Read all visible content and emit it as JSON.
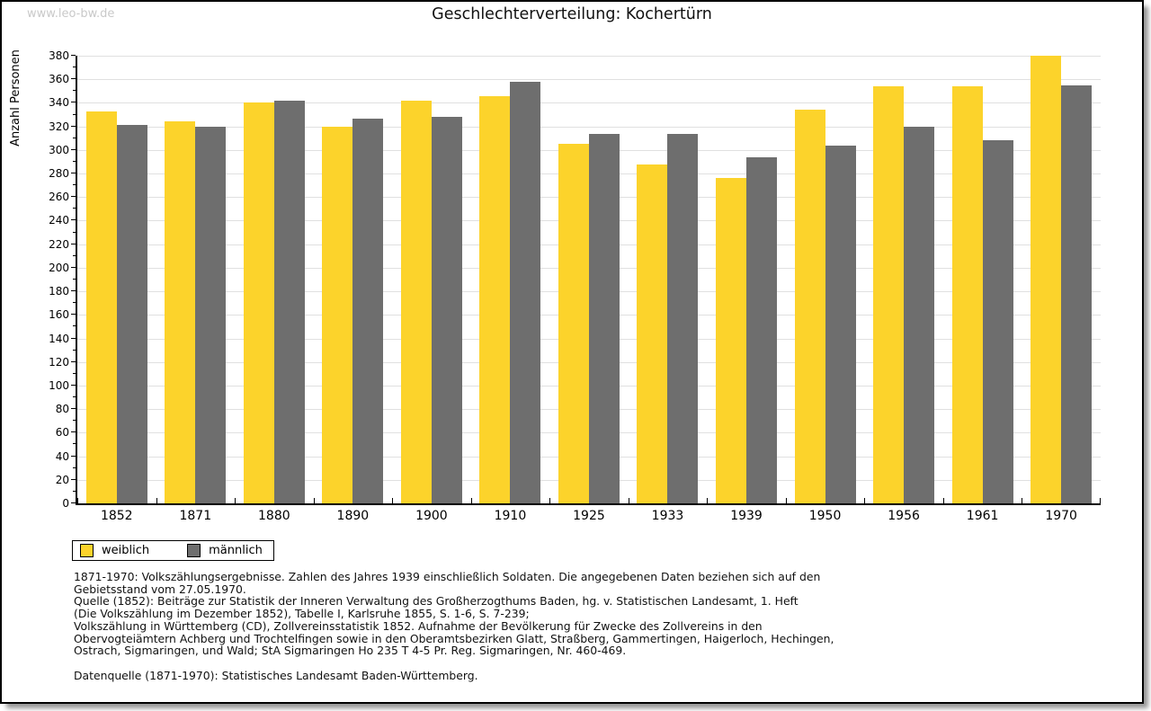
{
  "page": {
    "watermark": "www.leo-bw.de",
    "title": "Geschlechterverteilung: Kochertürn"
  },
  "chart_data": {
    "type": "bar",
    "title": "Geschlechterverteilung: Kochertürn",
    "xlabel": "",
    "ylabel": "Anzahl Personen",
    "ylim": [
      0,
      380
    ],
    "ytick_step": 20,
    "grid": true,
    "legend_position": "bottom-left",
    "categories": [
      "1852",
      "1871",
      "1880",
      "1890",
      "1900",
      "1910",
      "1925",
      "1933",
      "1939",
      "1950",
      "1956",
      "1961",
      "1970"
    ],
    "series": [
      {
        "name": "weiblich",
        "color": "#fcd32b",
        "values": [
          333,
          324,
          340,
          320,
          342,
          346,
          305,
          288,
          276,
          334,
          354,
          354,
          380
        ]
      },
      {
        "name": "männlich",
        "color": "#6e6e6e",
        "values": [
          321,
          320,
          342,
          327,
          328,
          358,
          314,
          314,
          294,
          304,
          320,
          308,
          355
        ]
      }
    ]
  },
  "footnotes": {
    "lines": [
      "1871-1970: Volkszählungsergebnisse. Zahlen des Jahres 1939 einschließlich Soldaten. Die angegebenen Daten beziehen sich auf den",
      "Gebietsstand vom 27.05.1970.",
      "Quelle (1852): Beiträge zur Statistik der Inneren Verwaltung des Großherzogthums Baden, hg. v. Statistischen Landesamt, 1. Heft",
      "(Die Volkszählung im Dezember 1852), Tabelle I, Karlsruhe 1855, S. 1-6, S. 7-239;",
      "Volkszählung in Württemberg (CD), Zollvereinsstatistik 1852. Aufnahme der Bevölkerung für Zwecke des Zollvereins in den",
      "Obervogteiämtern Achberg und Trochtelfingen sowie in den Oberamtsbezirken Glatt, Straßberg, Gammertingen, Haigerloch, Hechingen,",
      "Ostrach, Sigmaringen, und Wald; StA Sigmaringen Ho 235 T 4-5 Pr. Reg. Sigmaringen, Nr. 460-469."
    ],
    "datasource": "Datenquelle (1871-1970): Statistisches Landesamt Baden-Württemberg."
  }
}
